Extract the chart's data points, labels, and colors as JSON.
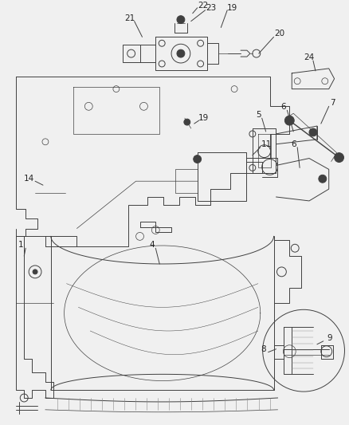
{
  "bg_color": "#f0f0f0",
  "fig_width": 4.38,
  "fig_height": 5.33,
  "dpi": 100,
  "line_color": "#404040",
  "label_color": "#222222",
  "label_fontsize": 7.5
}
